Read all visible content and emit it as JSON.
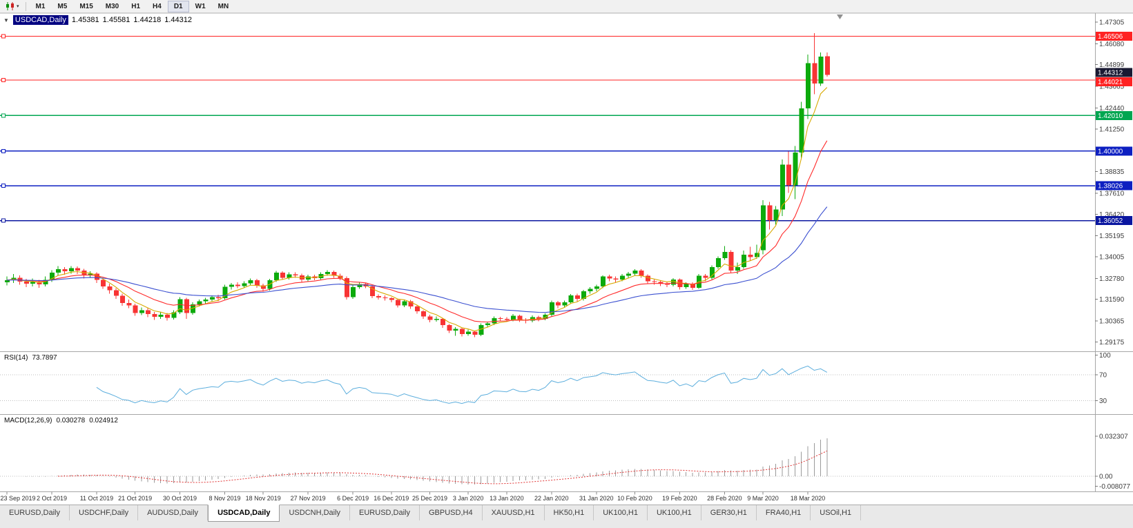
{
  "toolbar": {
    "timeframes": [
      "M1",
      "M5",
      "M15",
      "M30",
      "H1",
      "H4",
      "D1",
      "W1",
      "MN"
    ],
    "active": "D1"
  },
  "chart": {
    "title": {
      "symbol_period": "USDCAD,Daily",
      "open": "1.45381",
      "high": "1.45581",
      "low": "1.44218",
      "close": "1.44312"
    },
    "price_scale": [
      "1.47305",
      "1.46080",
      "1.44899",
      "1.43665",
      "1.42440",
      "1.41250",
      "1.40000",
      "1.38835",
      "1.37610",
      "1.36420",
      "1.35195",
      "1.34005",
      "1.32780",
      "1.31590",
      "1.30365",
      "1.29175"
    ],
    "current_price": {
      "label": "1.44312",
      "value": 1.44312,
      "color": "#1a1a33"
    },
    "hlines": [
      {
        "label": "1.46506",
        "value": 1.46506,
        "color": "#ff2222"
      },
      {
        "label": "1.44021",
        "value": 1.44021,
        "color": "#ff2222"
      },
      {
        "label": "1.42010",
        "value": 1.4201,
        "color": "#00a651"
      },
      {
        "label": "1.40000",
        "value": 1.4,
        "color": "#0d1fc1"
      },
      {
        "label": "1.38026",
        "value": 1.38026,
        "color": "#0d1fc1"
      },
      {
        "label": "1.36052",
        "value": 1.36052,
        "color": "#0a16a0"
      }
    ],
    "date_ticks": [
      [
        "23 Sep 2019",
        0
      ],
      [
        "2 Oct 2019",
        7
      ],
      [
        "11 Oct 2019",
        14
      ],
      [
        "21 Oct 2019",
        20
      ],
      [
        "30 Oct 2019",
        27
      ],
      [
        "8 Nov 2019",
        34
      ],
      [
        "18 Nov 2019",
        40
      ],
      [
        "27 Nov 2019",
        47
      ],
      [
        "6 Dec 2019",
        54
      ],
      [
        "16 Dec 2019",
        60
      ],
      [
        "25 Dec 2019",
        66
      ],
      [
        "3 Jan 2020",
        72
      ],
      [
        "13 Jan 2020",
        78
      ],
      [
        "22 Jan 2020",
        85
      ],
      [
        "31 Jan 2020",
        92
      ],
      [
        "10 Feb 2020",
        98
      ],
      [
        "19 Feb 2020",
        105
      ],
      [
        "28 Feb 2020",
        112
      ],
      [
        "9 Mar 2020",
        118
      ],
      [
        "18 Mar 2020",
        125
      ]
    ]
  },
  "rsi": {
    "name": "RSI(14)",
    "value": "73.7897",
    "period": 14,
    "color": "#5caedd",
    "levels": [
      {
        "label": "100",
        "value": 100
      },
      {
        "label": "70",
        "value": 70
      },
      {
        "label": "30",
        "value": 30
      }
    ]
  },
  "macd": {
    "name": "MACD(12,26,9)",
    "main_value": "0.030278",
    "signal_value": "0.024912",
    "fast": 12,
    "slow": 26,
    "signal_period": 9,
    "scale": [
      {
        "label": "0.032307",
        "value": 0.032307
      },
      {
        "label": "0.00",
        "value": 0
      },
      {
        "label": "-0.008077",
        "value": -0.008077
      }
    ]
  },
  "tabs": {
    "items": [
      "EURUSD,Daily",
      "USDCHF,Daily",
      "AUDUSD,Daily",
      "USDCAD,Daily",
      "USDCNH,Daily",
      "EURUSD,Daily",
      "GBPUSD,H4",
      "XAUUSD,H1",
      "HK50,H1",
      "UK100,H1",
      "UK100,H1",
      "GER30,H1",
      "FRA40,H1",
      "USOil,H1"
    ],
    "active_index": 3
  },
  "chart_data": {
    "type": "candlestick",
    "symbol": "USDCAD",
    "period": "Daily",
    "colors": {
      "bull": "#0caa0c",
      "bear": "#f83434",
      "macd_hist": "#9a9a9a",
      "macd_signal": "#e03434"
    },
    "moving_averages": [
      {
        "period": 5,
        "color": "#d8a900"
      },
      {
        "period": 13,
        "color": "#ff2a2a"
      },
      {
        "period": 34,
        "color": "#3a4fd0"
      }
    ],
    "candles": [
      [
        1.3255,
        1.3288,
        1.3238,
        1.3268
      ],
      [
        1.3268,
        1.3302,
        1.3252,
        1.3282
      ],
      [
        1.3282,
        1.3295,
        1.3242,
        1.326
      ],
      [
        1.326,
        1.3275,
        1.3228,
        1.3247
      ],
      [
        1.3247,
        1.3278,
        1.3232,
        1.3258
      ],
      [
        1.3258,
        1.327,
        1.3225,
        1.3243
      ],
      [
        1.3243,
        1.3288,
        1.3232,
        1.327
      ],
      [
        1.327,
        1.3325,
        1.3258,
        1.331
      ],
      [
        1.331,
        1.3348,
        1.3295,
        1.333
      ],
      [
        1.333,
        1.3342,
        1.3298,
        1.3318
      ],
      [
        1.3318,
        1.3347,
        1.3305,
        1.3335
      ],
      [
        1.3335,
        1.3345,
        1.3302,
        1.3322
      ],
      [
        1.3322,
        1.3332,
        1.3278,
        1.3298
      ],
      [
        1.3298,
        1.3318,
        1.3282,
        1.3305
      ],
      [
        1.3305,
        1.3312,
        1.3252,
        1.327
      ],
      [
        1.327,
        1.3282,
        1.3218,
        1.3232
      ],
      [
        1.3232,
        1.3248,
        1.3192,
        1.321
      ],
      [
        1.321,
        1.3222,
        1.3162,
        1.318
      ],
      [
        1.318,
        1.3192,
        1.3122,
        1.3138
      ],
      [
        1.3138,
        1.3158,
        1.3108,
        1.3125
      ],
      [
        1.3125,
        1.3135,
        1.3065,
        1.3082
      ],
      [
        1.3082,
        1.3112,
        1.307,
        1.3098
      ],
      [
        1.3098,
        1.3108,
        1.3058,
        1.3075
      ],
      [
        1.3075,
        1.3088,
        1.3042,
        1.306
      ],
      [
        1.306,
        1.3085,
        1.3048,
        1.3072
      ],
      [
        1.3072,
        1.3082,
        1.3038,
        1.3055
      ],
      [
        1.3055,
        1.3098,
        1.3045,
        1.3085
      ],
      [
        1.3085,
        1.3172,
        1.3075,
        1.316
      ],
      [
        1.316,
        1.3168,
        1.3048,
        1.3082
      ],
      [
        1.3082,
        1.3142,
        1.3072,
        1.313
      ],
      [
        1.313,
        1.3158,
        1.3118,
        1.3148
      ],
      [
        1.3148,
        1.3168,
        1.3132,
        1.3158
      ],
      [
        1.3158,
        1.3182,
        1.3145,
        1.3172
      ],
      [
        1.3172,
        1.3185,
        1.3148,
        1.3165
      ],
      [
        1.3165,
        1.3242,
        1.3158,
        1.323
      ],
      [
        1.323,
        1.3252,
        1.3215,
        1.3242
      ],
      [
        1.3242,
        1.3255,
        1.3222,
        1.3235
      ],
      [
        1.3235,
        1.3262,
        1.3225,
        1.325
      ],
      [
        1.325,
        1.3278,
        1.3238,
        1.3268
      ],
      [
        1.3268,
        1.3275,
        1.3225,
        1.3238
      ],
      [
        1.3238,
        1.3248,
        1.3202,
        1.3218
      ],
      [
        1.3218,
        1.3275,
        1.3208,
        1.3268
      ],
      [
        1.3268,
        1.332,
        1.3258,
        1.331
      ],
      [
        1.331,
        1.3318,
        1.327,
        1.3282
      ],
      [
        1.3282,
        1.3312,
        1.3272,
        1.33
      ],
      [
        1.33,
        1.3312,
        1.3282,
        1.3295
      ],
      [
        1.3295,
        1.3305,
        1.3258,
        1.3272
      ],
      [
        1.3272,
        1.3298,
        1.3262,
        1.3288
      ],
      [
        1.3288,
        1.3298,
        1.3268,
        1.328
      ],
      [
        1.328,
        1.3312,
        1.3272,
        1.3302
      ],
      [
        1.3302,
        1.3325,
        1.3292,
        1.3315
      ],
      [
        1.3315,
        1.3322,
        1.3282,
        1.3292
      ],
      [
        1.3292,
        1.3305,
        1.3268,
        1.328
      ],
      [
        1.328,
        1.3288,
        1.3158,
        1.3172
      ],
      [
        1.3172,
        1.3238,
        1.3162,
        1.3228
      ],
      [
        1.3228,
        1.3255,
        1.3218,
        1.3245
      ],
      [
        1.3245,
        1.3252,
        1.3222,
        1.3232
      ],
      [
        1.3232,
        1.324,
        1.3165,
        1.3178
      ],
      [
        1.3178,
        1.3188,
        1.3158,
        1.317
      ],
      [
        1.317,
        1.3182,
        1.3152,
        1.3165
      ],
      [
        1.3165,
        1.3172,
        1.3142,
        1.3155
      ],
      [
        1.3155,
        1.3162,
        1.3112,
        1.3125
      ],
      [
        1.3125,
        1.3155,
        1.3115,
        1.3148
      ],
      [
        1.3148,
        1.3155,
        1.3105,
        1.3118
      ],
      [
        1.3118,
        1.3128,
        1.3078,
        1.3092
      ],
      [
        1.3092,
        1.3098,
        1.3048,
        1.3062
      ],
      [
        1.3062,
        1.3072,
        1.3028,
        1.3042
      ],
      [
        1.3042,
        1.3062,
        1.3032,
        1.3048
      ],
      [
        1.3048,
        1.3055,
        1.2998,
        1.3012
      ],
      [
        1.3012,
        1.3018,
        1.2968,
        1.2982
      ],
      [
        1.2982,
        1.3002,
        1.2952,
        1.2992
      ],
      [
        1.2992,
        1.2998,
        1.2948,
        1.2962
      ],
      [
        1.2962,
        1.2988,
        1.2952,
        1.2975
      ],
      [
        1.2975,
        1.2982,
        1.2945,
        1.2958
      ],
      [
        1.2958,
        1.3022,
        1.295,
        1.3012
      ],
      [
        1.3012,
        1.3032,
        1.3002,
        1.3022
      ],
      [
        1.3022,
        1.3062,
        1.3012,
        1.3052
      ],
      [
        1.3052,
        1.306,
        1.3035,
        1.3048
      ],
      [
        1.3048,
        1.3058,
        1.303,
        1.3042
      ],
      [
        1.3042,
        1.3075,
        1.3035,
        1.3065
      ],
      [
        1.3065,
        1.3072,
        1.303,
        1.3042
      ],
      [
        1.3042,
        1.3052,
        1.3022,
        1.3038
      ],
      [
        1.3038,
        1.3068,
        1.3028,
        1.3058
      ],
      [
        1.3058,
        1.3065,
        1.3035,
        1.3048
      ],
      [
        1.3048,
        1.308,
        1.304,
        1.3072
      ],
      [
        1.3072,
        1.3152,
        1.3062,
        1.3142
      ],
      [
        1.3142,
        1.315,
        1.3108,
        1.3125
      ],
      [
        1.3125,
        1.3152,
        1.3115,
        1.3142
      ],
      [
        1.3142,
        1.319,
        1.3132,
        1.3182
      ],
      [
        1.3182,
        1.3192,
        1.3148,
        1.3162
      ],
      [
        1.3162,
        1.3212,
        1.3152,
        1.3205
      ],
      [
        1.3205,
        1.3228,
        1.3192,
        1.3218
      ],
      [
        1.3218,
        1.3242,
        1.3205,
        1.3232
      ],
      [
        1.3232,
        1.3295,
        1.3222,
        1.3288
      ],
      [
        1.3288,
        1.3298,
        1.3262,
        1.3278
      ],
      [
        1.3278,
        1.3288,
        1.3255,
        1.3272
      ],
      [
        1.3272,
        1.3302,
        1.3262,
        1.3292
      ],
      [
        1.3292,
        1.3315,
        1.3278,
        1.3305
      ],
      [
        1.3305,
        1.333,
        1.3295,
        1.3322
      ],
      [
        1.3322,
        1.3329,
        1.3282,
        1.3292
      ],
      [
        1.3292,
        1.33,
        1.3248,
        1.3262
      ],
      [
        1.3262,
        1.3272,
        1.3242,
        1.3258
      ],
      [
        1.3258,
        1.3268,
        1.3235,
        1.3248
      ],
      [
        1.3248,
        1.3258,
        1.3228,
        1.3242
      ],
      [
        1.3242,
        1.328,
        1.3232,
        1.3272
      ],
      [
        1.3272,
        1.3278,
        1.3215,
        1.3228
      ],
      [
        1.3228,
        1.3255,
        1.3218,
        1.3248
      ],
      [
        1.3248,
        1.3255,
        1.3212,
        1.3225
      ],
      [
        1.3225,
        1.3302,
        1.3218,
        1.3292
      ],
      [
        1.3292,
        1.3302,
        1.3262,
        1.3282
      ],
      [
        1.3282,
        1.3352,
        1.3272,
        1.3342
      ],
      [
        1.3342,
        1.3402,
        1.3332,
        1.3392
      ],
      [
        1.3392,
        1.3462,
        1.3382,
        1.3428
      ],
      [
        1.3428,
        1.3438,
        1.3308,
        1.3322
      ],
      [
        1.3322,
        1.3368,
        1.3302,
        1.3342
      ],
      [
        1.3342,
        1.3435,
        1.3332,
        1.3412
      ],
      [
        1.3412,
        1.3458,
        1.3378,
        1.3398
      ],
      [
        1.3398,
        1.3468,
        1.3388,
        1.3422
      ],
      [
        1.3438,
        1.3722,
        1.3415,
        1.3692
      ],
      [
        1.3692,
        1.3712,
        1.3555,
        1.3608
      ],
      [
        1.3608,
        1.3688,
        1.3582,
        1.3668
      ],
      [
        1.3668,
        1.3952,
        1.3632,
        1.3922
      ],
      [
        1.3922,
        1.3998,
        1.3762,
        1.3805
      ],
      [
        1.3805,
        1.4028,
        1.3728,
        1.3992
      ],
      [
        1.3992,
        1.4278,
        1.3962,
        1.4242
      ],
      [
        1.4242,
        1.4548,
        1.4182,
        1.4498
      ],
      [
        1.4498,
        1.4668,
        1.4322,
        1.4382
      ],
      [
        1.4382,
        1.4558,
        1.4368,
        1.4535
      ],
      [
        1.45381,
        1.45581,
        1.44218,
        1.44312
      ]
    ]
  }
}
